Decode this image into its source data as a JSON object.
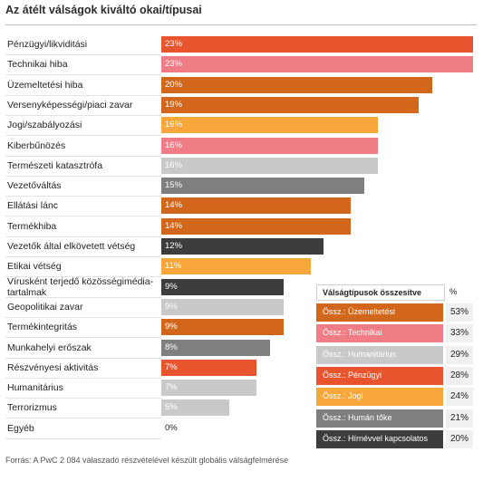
{
  "title": "Az átélt válságok kiváltó okai/típusai",
  "source": "Forrás: A PwC 2 084 válaszadó részvételével készült globális válságfelmérése",
  "chart_data": {
    "type": "bar",
    "orientation": "horizontal",
    "title": "Az átélt válságok kiváltó okai/típusai",
    "xlim": [
      0,
      23
    ],
    "categories": [
      "Pénzügyi/likviditási",
      "Technikai hiba",
      "Üzemeltetési hiba",
      "Versenyképességi/piaci zavar",
      "Jogi/szabályozási",
      "Kiberbűnözés",
      "Természeti katasztrófa",
      "Vezetőváltás",
      "Ellátási lánc",
      "Termékhiba",
      "Vezetők által elkövetett vétség",
      "Etikai vétség",
      "Vírusként terjedő közösségimédia-tartalmak",
      "Geopolitikai zavar",
      "Termékintegritás",
      "Munkahelyi erőszak",
      "Részvényesi aktivitás",
      "Humanitárius",
      "Terrorizmus",
      "Egyéb"
    ],
    "values": [
      23,
      23,
      20,
      19,
      16,
      16,
      16,
      15,
      14,
      14,
      12,
      11,
      9,
      9,
      9,
      8,
      7,
      7,
      5,
      0
    ],
    "value_labels": [
      "23%",
      "23%",
      "20%",
      "19%",
      "16%",
      "16%",
      "16%",
      "15%",
      "14%",
      "14%",
      "12%",
      "11%",
      "9%",
      "9%",
      "9%",
      "8%",
      "7%",
      "7%",
      "5%",
      "0%"
    ],
    "bar_colors": [
      "#e8542e",
      "#f07d85",
      "#d2671c",
      "#d2671c",
      "#f7a63a",
      "#f07d85",
      "#c9c9c9",
      "#7f7f7f",
      "#d2671c",
      "#d2671c",
      "#3d3d3f",
      "#f7a63a",
      "#3d3d3f",
      "#c9c9c9",
      "#d2671c",
      "#7f7f7f",
      "#e8542e",
      "#c9c9c9",
      "#c9c9c9",
      "#ffffff"
    ],
    "legend": {
      "title": "Válságtípusok összesítve",
      "pct_header": "%",
      "items": [
        {
          "label": "Össz.: Üzemeltetési",
          "value": "53%",
          "color": "#d2671c"
        },
        {
          "label": "Össz.: Technikai",
          "value": "33%",
          "color": "#f07d85"
        },
        {
          "label": "Össz.: Humanitárius",
          "value": "29%",
          "color": "#c9c9c9"
        },
        {
          "label": "Össz.: Pénzügyi",
          "value": "28%",
          "color": "#e8542e"
        },
        {
          "label": "Össz.: Jogi",
          "value": "24%",
          "color": "#f7a63a"
        },
        {
          "label": "Össz.: Humán tőke",
          "value": "21%",
          "color": "#7f7f7f"
        },
        {
          "label": "Össz.: Hírnévvel kapcsolatos",
          "value": "20%",
          "color": "#3d3d3f"
        }
      ]
    }
  }
}
